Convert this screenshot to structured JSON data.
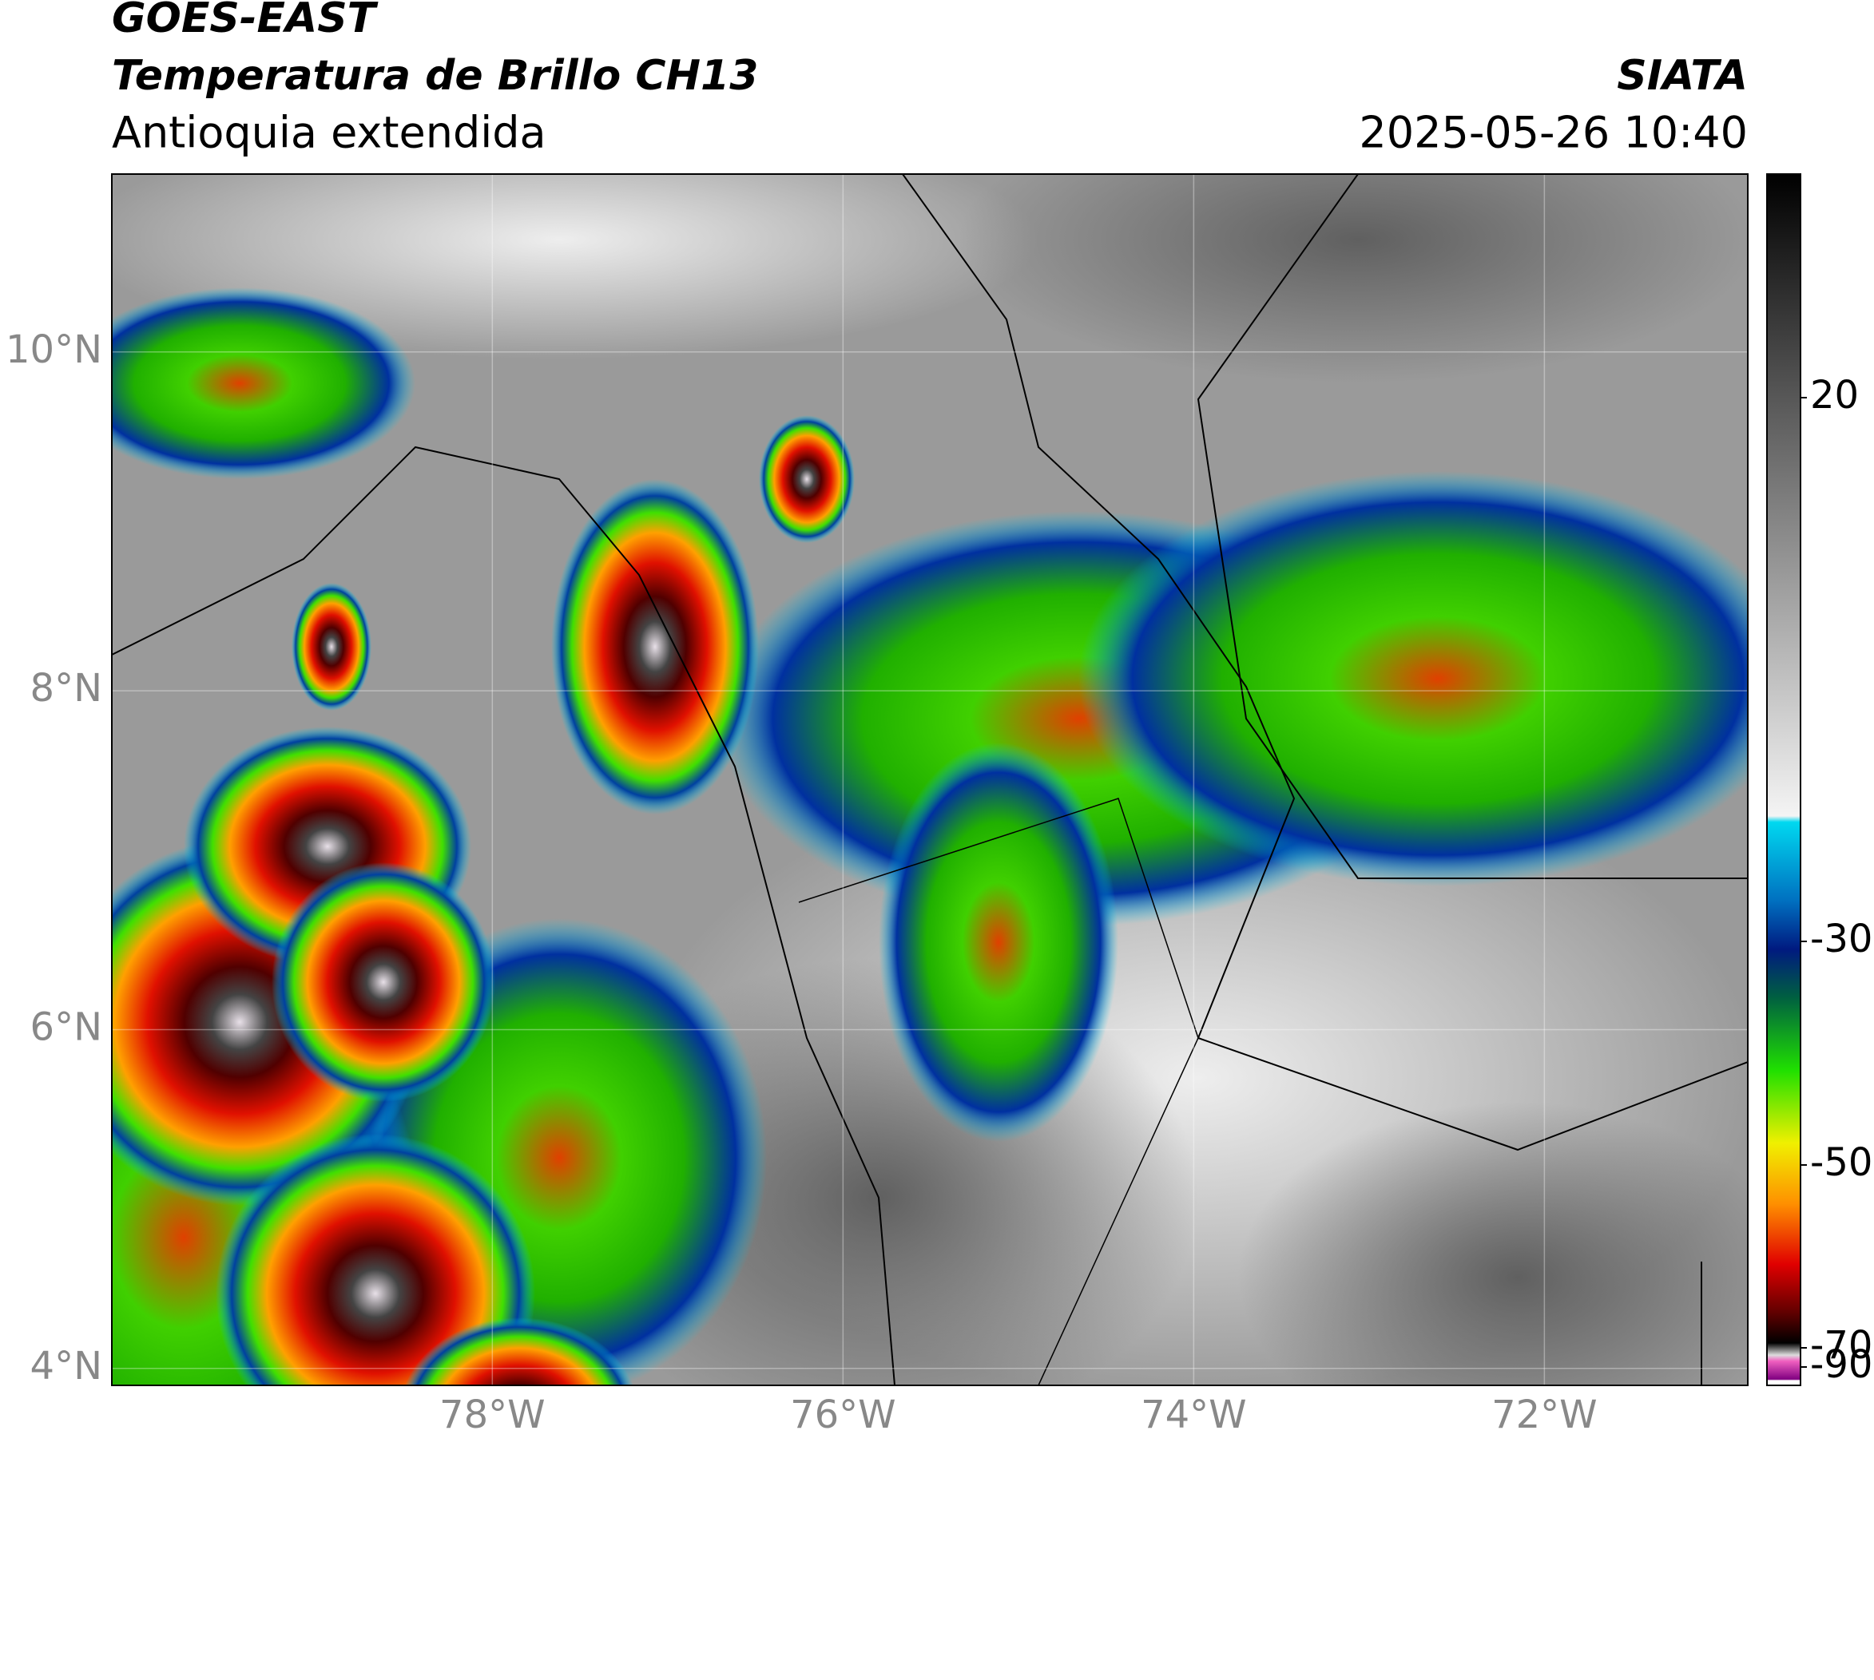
{
  "header": {
    "satellite": "GOES-EAST",
    "product": "Temperatura de Brillo CH13",
    "region": "Antioquia extendida",
    "agency": "SIATA",
    "datetime": "2025-05-26 10:40"
  },
  "map": {
    "xlim": [
      -80.17,
      -70.84
    ],
    "ylim": [
      3.9,
      11.05
    ],
    "xticks": [
      {
        "value": -78,
        "label": "78°W"
      },
      {
        "value": -76,
        "label": "76°W"
      },
      {
        "value": -74,
        "label": "74°W"
      },
      {
        "value": -72,
        "label": "72°W"
      }
    ],
    "yticks": [
      {
        "value": 10,
        "label": "10°N"
      },
      {
        "value": 8,
        "label": "8°N"
      },
      {
        "value": 6,
        "label": "6°N"
      },
      {
        "value": 4,
        "label": "4°N"
      }
    ],
    "grid": true
  },
  "colorbar": {
    "ticks": [
      20,
      -30,
      -50,
      -70,
      -90
    ]
  }
}
